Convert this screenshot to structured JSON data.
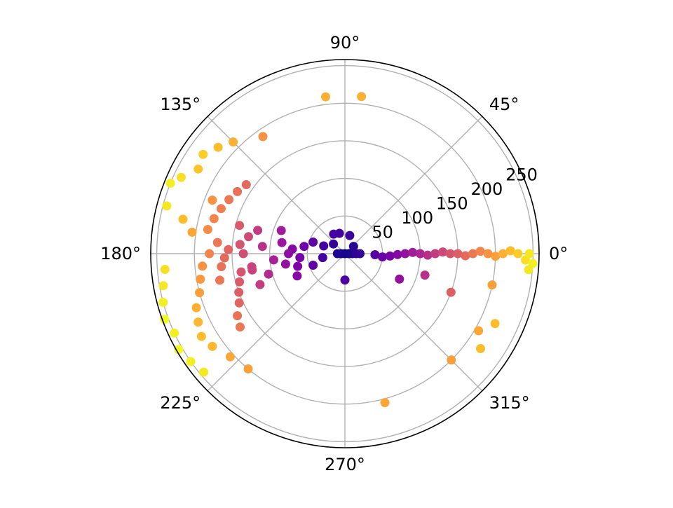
{
  "chart_data": {
    "type": "scatter",
    "projection": "polar",
    "title": "",
    "theta_ticks": [
      "0°",
      "45°",
      "90°",
      "135°",
      "180°",
      "225°",
      "270°",
      "315°"
    ],
    "theta_tick_values_deg": [
      0,
      45,
      90,
      135,
      180,
      225,
      270,
      315
    ],
    "r_ticks": [
      "50",
      "100",
      "150",
      "200",
      "250"
    ],
    "r_tick_values": [
      50,
      100,
      150,
      200,
      250
    ],
    "rlim": [
      0,
      258
    ],
    "r_label_angle_deg": 22.5,
    "grid": true,
    "colormap": "plasma",
    "color_by": "radius",
    "points": [
      {
        "theta": 0,
        "r": 0
      },
      {
        "theta": 0,
        "r": 5
      },
      {
        "theta": 0,
        "r": 10
      },
      {
        "theta": 0,
        "r": 15
      },
      {
        "theta": 0,
        "r": 20
      },
      {
        "theta": 180,
        "r": 5
      },
      {
        "theta": 180,
        "r": 10
      },
      {
        "theta": 40,
        "r": 15
      },
      {
        "theta": 140,
        "r": 20
      },
      {
        "theta": 270,
        "r": 35
      },
      {
        "theta": 75,
        "r": 25
      },
      {
        "theta": 105,
        "r": 28
      },
      {
        "theta": 120,
        "r": 30
      },
      {
        "theta": 160,
        "r": 30
      },
      {
        "theta": 190,
        "r": 30
      },
      {
        "theta": 200,
        "r": 45
      },
      {
        "theta": 160,
        "r": 45
      },
      {
        "theta": 170,
        "r": 55
      },
      {
        "theta": 185,
        "r": 60
      },
      {
        "theta": 195,
        "r": 65
      },
      {
        "theta": 175,
        "r": 70
      },
      {
        "theta": 180,
        "r": 75
      },
      {
        "theta": 205,
        "r": 70
      },
      {
        "theta": 190,
        "r": 80
      },
      {
        "theta": 170,
        "r": 85
      },
      {
        "theta": 160,
        "r": 90
      },
      {
        "theta": 185,
        "r": 95
      },
      {
        "theta": 195,
        "r": 105
      },
      {
        "theta": 175,
        "r": 110
      },
      {
        "theta": 165,
        "r": 120
      },
      {
        "theta": 190,
        "r": 125
      },
      {
        "theta": 200,
        "r": 120
      },
      {
        "theta": 180,
        "r": 135
      },
      {
        "theta": 170,
        "r": 130
      },
      {
        "theta": 190,
        "r": 140
      },
      {
        "theta": 165,
        "r": 145
      },
      {
        "theta": -2,
        "r": 40
      },
      {
        "theta": -5,
        "r": 50
      },
      {
        "theta": -3,
        "r": 60
      },
      {
        "theta": -1,
        "r": 70
      },
      {
        "theta": 0,
        "r": 80
      },
      {
        "theta": 1,
        "r": 90
      },
      {
        "theta": 0,
        "r": 100
      },
      {
        "theta": -1,
        "r": 110
      },
      {
        "theta": 0,
        "r": 120
      },
      {
        "theta": 1,
        "r": 130
      },
      {
        "theta": 0,
        "r": 140
      },
      {
        "theta": 0,
        "r": 150
      },
      {
        "theta": -1,
        "r": 160
      },
      {
        "theta": 0,
        "r": 170
      },
      {
        "theta": 1,
        "r": 180
      },
      {
        "theta": 0,
        "r": 190
      },
      {
        "theta": -1,
        "r": 200
      },
      {
        "theta": 0,
        "r": 210
      },
      {
        "theta": 1,
        "r": 220
      },
      {
        "theta": 0,
        "r": 230
      },
      {
        "theta": -2,
        "r": 240
      },
      {
        "theta": 0,
        "r": 245
      },
      {
        "theta": -3,
        "r": 250
      },
      {
        "theta": -5,
        "r": 245
      },
      {
        "theta": -15,
        "r": 110
      },
      {
        "theta": -25,
        "r": 80
      },
      {
        "theta": -20,
        "r": 150
      },
      {
        "theta": -12,
        "r": 200
      },
      {
        "theta": -30,
        "r": 205
      },
      {
        "theta": -25,
        "r": 220
      },
      {
        "theta": -35,
        "r": 220
      },
      {
        "theta": -45,
        "r": 200
      },
      {
        "theta": -75,
        "r": 205
      },
      {
        "theta": 84,
        "r": 210
      },
      {
        "theta": 97,
        "r": 210
      },
      {
        "theta": 125,
        "r": 190
      },
      {
        "theta": 135,
        "r": 210
      },
      {
        "theta": 140,
        "r": 220
      },
      {
        "theta": 145,
        "r": 230
      },
      {
        "theta": 150,
        "r": 225
      },
      {
        "theta": 155,
        "r": 240
      },
      {
        "theta": 158,
        "r": 250
      },
      {
        "theta": 165,
        "r": 245
      },
      {
        "theta": 168,
        "r": 220
      },
      {
        "theta": 172,
        "r": 205
      },
      {
        "theta": 158,
        "r": 190
      },
      {
        "theta": 145,
        "r": 160
      },
      {
        "theta": 150,
        "r": 165
      },
      {
        "theta": 155,
        "r": 170
      },
      {
        "theta": 160,
        "r": 175
      },
      {
        "theta": 165,
        "r": 180
      },
      {
        "theta": 170,
        "r": 185
      },
      {
        "theta": 175,
        "r": 170
      },
      {
        "theta": 180,
        "r": 180
      },
      {
        "theta": 185,
        "r": 190
      },
      {
        "theta": 190,
        "r": 195
      },
      {
        "theta": 195,
        "r": 200
      },
      {
        "theta": 200,
        "r": 210
      },
      {
        "theta": 205,
        "r": 215
      },
      {
        "theta": 210,
        "r": 220
      },
      {
        "theta": 215,
        "r": 215
      },
      {
        "theta": 222,
        "r": 205
      },
      {
        "theta": 230,
        "r": 200
      },
      {
        "theta": 185,
        "r": 240
      },
      {
        "theta": 190,
        "r": 245
      },
      {
        "theta": 195,
        "r": 250
      },
      {
        "theta": 200,
        "r": 255
      },
      {
        "theta": 205,
        "r": 250
      },
      {
        "theta": 210,
        "r": 255
      },
      {
        "theta": 215,
        "r": 250
      },
      {
        "theta": 220,
        "r": 245
      },
      {
        "theta": 188,
        "r": 125
      },
      {
        "theta": 195,
        "r": 145
      },
      {
        "theta": 200,
        "r": 150
      },
      {
        "theta": 205,
        "r": 155
      },
      {
        "theta": 210,
        "r": 165
      },
      {
        "theta": 215,
        "r": 170
      },
      {
        "theta": 175,
        "r": 140
      },
      {
        "theta": 178,
        "r": 155
      },
      {
        "theta": 182,
        "r": 160
      },
      {
        "theta": 186,
        "r": 165
      },
      {
        "theta": 192,
        "r": 170
      }
    ]
  }
}
